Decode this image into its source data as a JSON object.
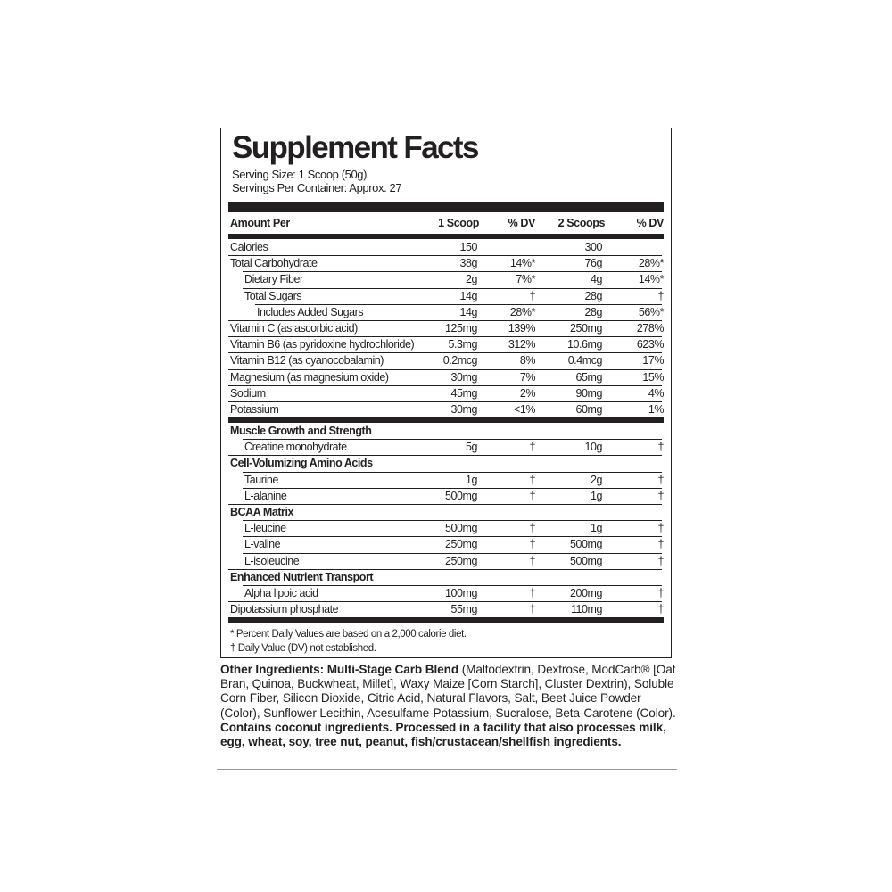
{
  "title": "Supplement Facts",
  "serving_size": "Serving Size: 1 Scoop (50g)",
  "servings_per_container": "Servings Per Container: Approx. 27",
  "header": {
    "amount_per": "Amount Per",
    "col1": "1 Scoop",
    "col2": "% DV",
    "col3": "2 Scoops",
    "col4": "% DV"
  },
  "rows": [
    {
      "label": "Calories",
      "indent": 0,
      "v1": "150",
      "d1": "",
      "v2": "300",
      "d2": ""
    },
    {
      "label": "Total Carbohydrate",
      "indent": 0,
      "v1": "38g",
      "d1": "14%*",
      "v2": "76g",
      "d2": "28%*"
    },
    {
      "label": "Dietary Fiber",
      "indent": 1,
      "v1": "2g",
      "d1": "7%*",
      "v2": "4g",
      "d2": "14%*"
    },
    {
      "label": "Total Sugars",
      "indent": 1,
      "v1": "14g",
      "d1": "†",
      "v2": "28g",
      "d2": "†"
    },
    {
      "label": "Includes Added Sugars",
      "indent": 2,
      "v1": "14g",
      "d1": "28%*",
      "v2": "28g",
      "d2": "56%*"
    },
    {
      "label": "Vitamin C (as ascorbic acid)",
      "indent": 0,
      "v1": "125mg",
      "d1": "139%",
      "v2": "250mg",
      "d2": "278%"
    },
    {
      "label": "Vitamin B6 (as pyridoxine hydrochloride)",
      "indent": 0,
      "v1": "5.3mg",
      "d1": "312%",
      "v2": "10.6mg",
      "d2": "623%"
    },
    {
      "label": "Vitamin B12 (as cyanocobalamin)",
      "indent": 0,
      "v1": "0.2mcg",
      "d1": "8%",
      "v2": "0.4mcg",
      "d2": "17%"
    },
    {
      "label": "Magnesium (as magnesium oxide)",
      "indent": 0,
      "v1": "30mg",
      "d1": "7%",
      "v2": "65mg",
      "d2": "15%"
    },
    {
      "label": "Sodium",
      "indent": 0,
      "v1": "45mg",
      "d1": "2%",
      "v2": "90mg",
      "d2": "4%"
    },
    {
      "label": "Potassium",
      "indent": 0,
      "v1": "30mg",
      "d1": "<1%",
      "v2": "60mg",
      "d2": "1%"
    },
    {
      "thick": true
    },
    {
      "label": "Muscle Growth and Strength",
      "indent": 0,
      "heading": true,
      "noline": true
    },
    {
      "label": "Creatine monohydrate",
      "indent": 1,
      "v1": "5g",
      "d1": "†",
      "v2": "10g",
      "d2": "†"
    },
    {
      "label": "Cell-Volumizing Amino Acids",
      "indent": 0,
      "heading": true
    },
    {
      "label": "Taurine",
      "indent": 1,
      "v1": "1g",
      "d1": "†",
      "v2": "2g",
      "d2": "†"
    },
    {
      "label": "L-alanine",
      "indent": 1,
      "v1": "500mg",
      "d1": "†",
      "v2": "1g",
      "d2": "†"
    },
    {
      "label": "BCAA Matrix",
      "indent": 0,
      "heading": true
    },
    {
      "label": "L-leucine",
      "indent": 1,
      "v1": "500mg",
      "d1": "†",
      "v2": "1g",
      "d2": "†"
    },
    {
      "label": "L-valine",
      "indent": 1,
      "v1": "250mg",
      "d1": "†",
      "v2": "500mg",
      "d2": "†"
    },
    {
      "label": "L-isoleucine",
      "indent": 1,
      "v1": "250mg",
      "d1": "†",
      "v2": "500mg",
      "d2": "†"
    },
    {
      "label": "Enhanced Nutrient Transport",
      "indent": 0,
      "heading": true
    },
    {
      "label": "Alpha lipoic acid",
      "indent": 1,
      "v1": "100mg",
      "d1": "†",
      "v2": "200mg",
      "d2": "†"
    },
    {
      "label": "Dipotassium phosphate",
      "indent": 0,
      "v1": "55mg",
      "d1": "†",
      "v2": "110mg",
      "d2": "†"
    },
    {
      "thick": true
    }
  ],
  "footnotes": [
    "* Percent Daily Values are based on a 2,000 calorie diet.",
    "† Daily Value (DV) not established."
  ],
  "other_ingredients": {
    "label": "Other Ingredients: Multi-Stage Carb Blend",
    "text": " (Maltodextrin, Dextrose, ModCarb® [Oat Bran, Quinoa, Buckwheat, Millet], Waxy Maize [Corn Starch], Cluster Dextrin), Soluble Corn Fiber, Silicon Dioxide, Citric Acid, Natural Flavors, Salt, Beet Juice Powder (Color), Sunflower Lecithin, Acesulfame-Potassium, Sucralose, Beta-Carotene (Color). ",
    "warning": "Contains coconut ingredients. Processed in a facility that also processes milk, egg, wheat, soy, tree nut, peanut, fish/crustacean/shellfish ingredients."
  }
}
